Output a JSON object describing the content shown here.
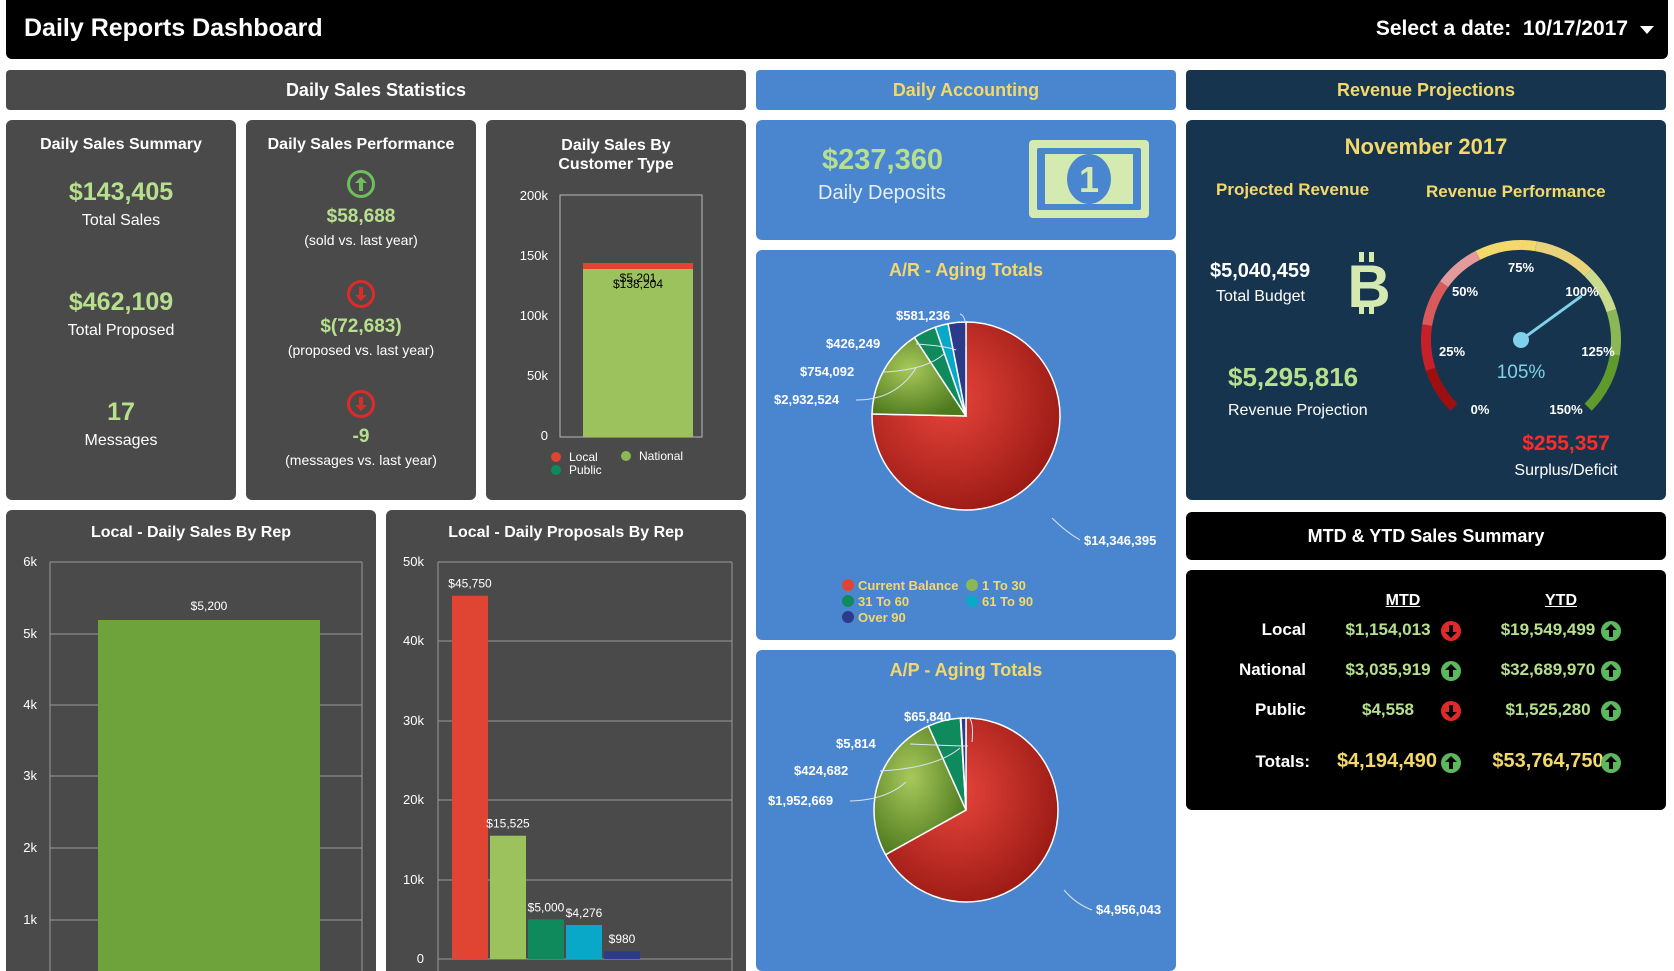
{
  "header": {
    "title": "Daily Reports Dashboard",
    "date_label": "Select a date:",
    "date_value": "10/17/2017"
  },
  "sections": {
    "sales": "Daily Sales Statistics",
    "accounting": "Daily Accounting",
    "revenue": "Revenue Projections"
  },
  "summary": {
    "title": "Daily Sales Summary",
    "total_sales": "$143,405",
    "total_sales_label": "Total Sales",
    "total_proposed": "$462,109",
    "total_proposed_label": "Total Proposed",
    "messages": "17",
    "messages_label": "Messages"
  },
  "performance": {
    "title": "Daily Sales Performance",
    "sold": "$58,688",
    "sold_label": "(sold vs. last year)",
    "proposed": "$(72,683)",
    "proposed_label": "(proposed vs. last year)",
    "messages": "-9",
    "messages_label": "(messages vs. last year)"
  },
  "customer_chart": {
    "title_line1": "Daily Sales By",
    "title_line2": "Customer Type",
    "legend_local": "Local",
    "legend_national": "National",
    "legend_public": "Public",
    "label_top": "$5,201",
    "label_main": "$138,204",
    "ticks": [
      "200k",
      "150k",
      "100k",
      "50k",
      "0"
    ]
  },
  "deposits": {
    "value": "$237,360",
    "label": "Daily Deposits",
    "icon_glyph": "1"
  },
  "ar": {
    "title": "A/R - Aging Totals",
    "labels": {
      "over90": "$581,236",
      "d61": "$426,249",
      "d31": "$754,092",
      "d1": "$2,932,524",
      "current": "$14,346,395"
    },
    "legend": {
      "current": "Current Balance",
      "d1": "1 To 30",
      "d31": "31 To 60",
      "d61": "61 To 90",
      "over90": "Over 90"
    }
  },
  "ap": {
    "title": "A/P - Aging Totals",
    "labels": {
      "over90": "$65,840",
      "d61": "$5,814",
      "d31": "$424,682",
      "d1": "$1,952,669",
      "current": "$4,956,043"
    }
  },
  "revenue": {
    "month": "November 2017",
    "projected_title": "Projected Revenue",
    "performance_title": "Revenue Performance",
    "budget": "$5,040,459",
    "budget_label": "Total Budget",
    "projection": "$5,295,816",
    "projection_label": "Revenue Projection",
    "gauge_ticks": {
      "t0": "0%",
      "t25": "25%",
      "t50": "50%",
      "t75": "75%",
      "t100": "100%",
      "t125": "125%",
      "t150": "150%"
    },
    "gauge_value": "105%",
    "gauge_percent": 105,
    "surplus": "$255,357",
    "surplus_label": "Surplus/Deficit"
  },
  "mtd": {
    "title": "MTD & YTD Sales Summary",
    "col_mtd": "MTD",
    "col_ytd": "YTD",
    "rows": [
      {
        "label": "Local",
        "mtd": "$1,154,013",
        "ytd": "$19,549,499"
      },
      {
        "label": "National",
        "mtd": "$3,035,919",
        "ytd": "$32,689,970"
      },
      {
        "label": "Public",
        "mtd": "$4,558",
        "ytd": "$1,525,280"
      }
    ],
    "totals": {
      "label": "Totals:",
      "mtd": "$4,194,490",
      "ytd": "$53,764,750"
    }
  },
  "rep_sales": {
    "title": "Local - Daily Sales By Rep",
    "ticks": [
      "6k",
      "5k",
      "4k",
      "3k",
      "2k",
      "1k"
    ],
    "bar_label": "$5,200"
  },
  "rep_proposals": {
    "title": "Local - Daily Proposals By Rep",
    "ticks": [
      "50k",
      "40k",
      "30k",
      "20k",
      "10k",
      "0"
    ],
    "bar_labels": [
      "$45,750",
      "$15,525",
      "$5,000",
      "$4,276",
      "$980"
    ]
  },
  "colors": {
    "red": "#e04433",
    "green": "#8cb755",
    "teal": "#0f8a5d",
    "cyan": "#0aa8c8",
    "navy": "#2b3b8a"
  }
}
